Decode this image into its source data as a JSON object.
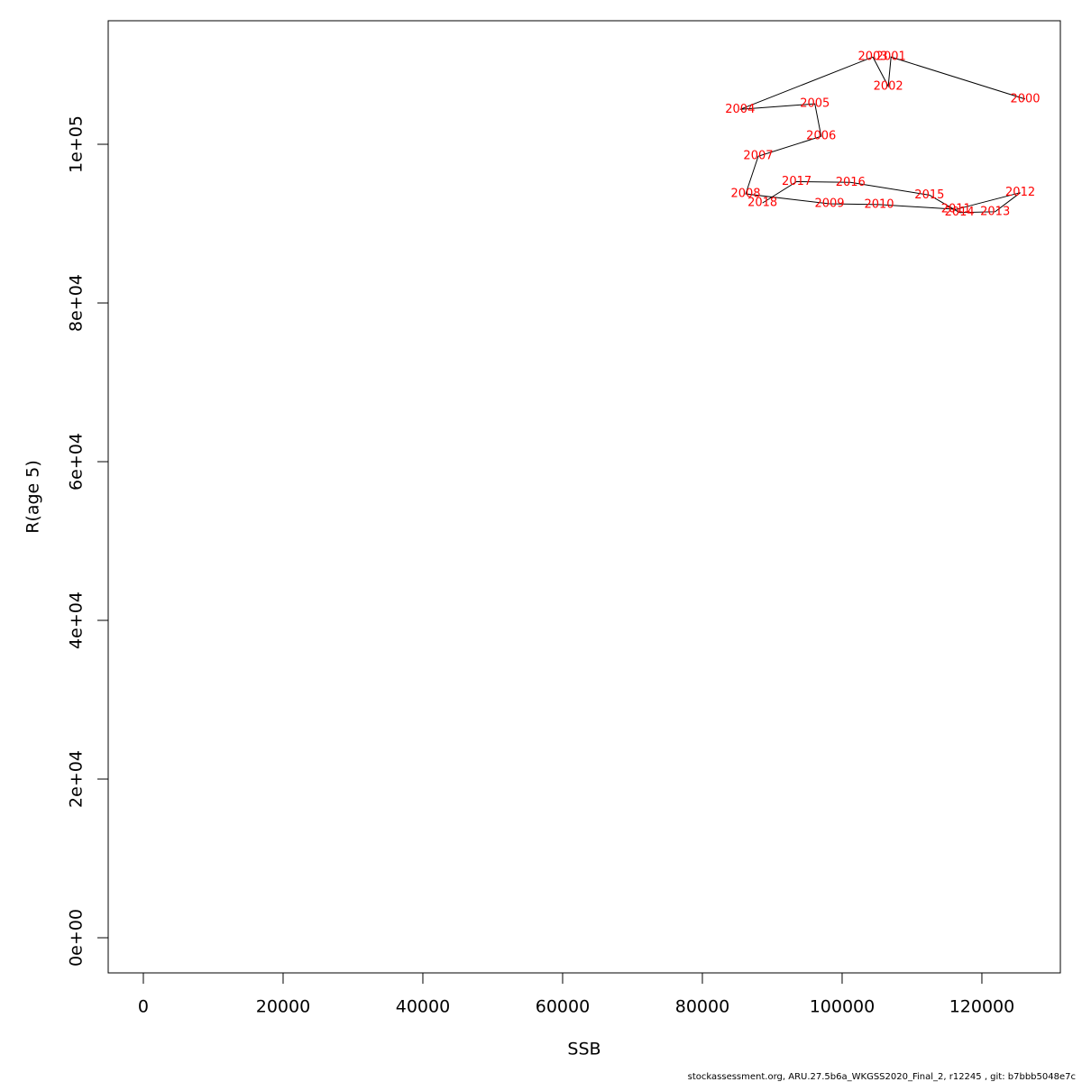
{
  "chart_data": {
    "type": "scatter",
    "x_label": "SSB",
    "y_label": "R(age 5)",
    "labels": [
      "2000",
      "2001",
      "2002",
      "2003",
      "2004",
      "2005",
      "2006",
      "2007",
      "2008",
      "2009",
      "2010",
      "2011",
      "2012",
      "2013",
      "2014",
      "2015",
      "2016",
      "2017",
      "2018"
    ],
    "x": [
      126200,
      107000,
      106600,
      104400,
      85400,
      96100,
      97000,
      88000,
      86200,
      98200,
      105300,
      116300,
      125500,
      121900,
      116800,
      112500,
      101200,
      93500,
      88600
    ],
    "values": [
      105700,
      111000,
      107300,
      111000,
      104400,
      105100,
      101000,
      98500,
      93750,
      92500,
      92400,
      91800,
      93900,
      91500,
      91400,
      93600,
      95200,
      95300,
      92600
    ],
    "label_color": "#ff0000",
    "line_color": "#000000",
    "xlim": [
      -5030,
      131230
    ],
    "ylim": [
      -4430,
      115570
    ],
    "xticks": [
      0,
      20000,
      40000,
      60000,
      80000,
      100000,
      120000
    ],
    "yticks": [
      {
        "value": 0,
        "label": "0e+00"
      },
      {
        "value": 20000,
        "label": "2e+04"
      },
      {
        "value": 40000,
        "label": "4e+04"
      },
      {
        "value": 60000,
        "label": "6e+04"
      },
      {
        "value": 80000,
        "label": "8e+04"
      },
      {
        "value": 100000,
        "label": "1e+05"
      }
    ],
    "footer": "stockassessment.org, ARU.27.5b6a_WKGSS2020_Final_2, r12245 , git: b7bbb5048e7c"
  }
}
